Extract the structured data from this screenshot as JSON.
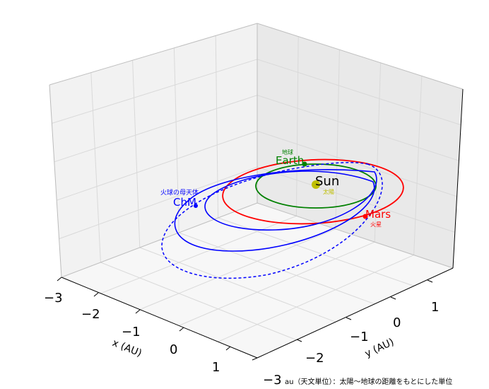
{
  "chart_data": {
    "type": "line",
    "projection": "3d",
    "xlabel": "x (AU)",
    "ylabel": "y (AU)",
    "x_ticks": [
      "−3",
      "−2",
      "−1",
      "0",
      "1"
    ],
    "y_ticks": [
      "−3",
      "−2",
      "−1",
      "0",
      "1"
    ],
    "xlim": [
      -3,
      1.7
    ],
    "ylim": [
      -3,
      1.7
    ],
    "grid": true,
    "colors": {
      "earth": "#008000",
      "mars": "#ff0000",
      "chm": "#0000ff",
      "sun": "#bfbf00"
    },
    "bodies": [
      {
        "name": "Sun",
        "label": "Sun",
        "label_ja": "太陽",
        "color": "#bfbf00"
      },
      {
        "name": "Earth",
        "label": "Earth",
        "label_ja": "地球",
        "color": "#008000"
      },
      {
        "name": "Mars",
        "label": "Mars",
        "label_ja": "火星",
        "color": "#ff0000"
      },
      {
        "name": "ChM",
        "label": "ChM",
        "label_ja": "火球の母天体",
        "color": "#0000ff"
      }
    ],
    "series": [
      {
        "name": "Earth",
        "orbit_au": 1.0,
        "style": "solid",
        "color": "#008000"
      },
      {
        "name": "Mars",
        "orbit_au": 1.52,
        "style": "solid",
        "color": "#ff0000"
      },
      {
        "name": "ChM",
        "style": "solid",
        "color": "#0000ff"
      },
      {
        "name": "ChM",
        "style": "dashed",
        "color": "#0000ff"
      }
    ]
  },
  "footnote": "au（天文単位）：太陽〜地球の距離をもとにした単位"
}
